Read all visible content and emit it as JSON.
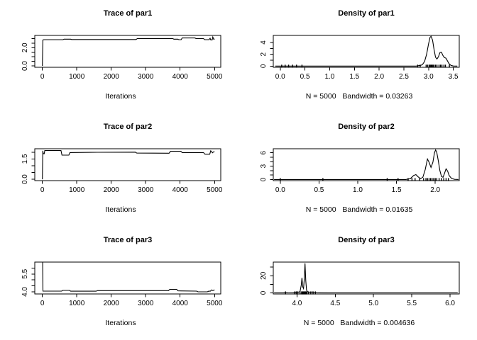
{
  "figure": {
    "background": "#ffffff",
    "foreground": "#000000",
    "layout": "3 rows x 2 cols"
  },
  "chart_data": [
    {
      "id": "trace-par1",
      "type": "line",
      "title": "Trace of par1",
      "xlabel": "Iterations",
      "xlim": [
        -220,
        5180
      ],
      "ylim": [
        -0.15,
        3.35
      ],
      "xticks": {
        "values": [
          0,
          1000,
          2000,
          3000,
          4000,
          5000
        ],
        "labels": [
          "0",
          "1000",
          "2000",
          "3000",
          "4000",
          "5000"
        ]
      },
      "yticks": {
        "values": [
          0,
          0.5,
          1,
          1.5,
          2,
          2.5,
          3
        ],
        "labels": [
          "0.0",
          "",
          "",
          "",
          "2.0",
          "",
          ""
        ]
      },
      "series": [
        [
          0,
          0
        ],
        [
          15,
          2.85
        ],
        [
          40,
          2.88
        ],
        [
          600,
          2.88
        ],
        [
          630,
          2.94
        ],
        [
          820,
          2.94
        ],
        [
          850,
          2.9
        ],
        [
          2720,
          2.9
        ],
        [
          2760,
          3.01
        ],
        [
          3780,
          3.01
        ],
        [
          3820,
          2.94
        ],
        [
          3930,
          2.94
        ],
        [
          3960,
          2.88
        ],
        [
          4030,
          2.88
        ],
        [
          4060,
          3.07
        ],
        [
          4430,
          3.07
        ],
        [
          4460,
          3.0
        ],
        [
          4680,
          3.0
        ],
        [
          4710,
          2.88
        ],
        [
          4840,
          2.88
        ],
        [
          4870,
          3.04
        ],
        [
          4890,
          2.86
        ],
        [
          4930,
          2.86
        ],
        [
          4950,
          3.18
        ],
        [
          4975,
          2.92
        ],
        [
          5000,
          2.96
        ]
      ],
      "rug": []
    },
    {
      "id": "density-par1",
      "type": "area",
      "title": "Density of par1",
      "xlabel": "N = 5000   Bandwidth = 0.03263",
      "n": 5000,
      "bandwidth": 0.03263,
      "xlim": [
        -0.14,
        3.62
      ],
      "ylim": [
        -0.2,
        5.2
      ],
      "xticks": {
        "values": [
          0,
          0.5,
          1,
          1.5,
          2,
          2.5,
          3,
          3.5
        ],
        "labels": [
          "0.0",
          "0.5",
          "1.0",
          "1.5",
          "2.0",
          "2.5",
          "3.0",
          "3.5"
        ]
      },
      "yticks": {
        "values": [
          0,
          1,
          2,
          3,
          4
        ],
        "labels": [
          "0",
          "",
          "2",
          "",
          "4"
        ]
      },
      "series": [
        [
          -0.1,
          0
        ],
        [
          2.75,
          0
        ],
        [
          2.8,
          0.08
        ],
        [
          2.85,
          0.15
        ],
        [
          2.88,
          0.3
        ],
        [
          2.92,
          0.8
        ],
        [
          2.96,
          2.0
        ],
        [
          3.0,
          3.8
        ],
        [
          3.03,
          4.9
        ],
        [
          3.05,
          5.05
        ],
        [
          3.08,
          4.4
        ],
        [
          3.11,
          2.8
        ],
        [
          3.14,
          1.5
        ],
        [
          3.17,
          1.2
        ],
        [
          3.2,
          1.6
        ],
        [
          3.23,
          2.3
        ],
        [
          3.26,
          2.35
        ],
        [
          3.29,
          1.8
        ],
        [
          3.32,
          1.45
        ],
        [
          3.35,
          1.35
        ],
        [
          3.38,
          0.9
        ],
        [
          3.41,
          0.45
        ],
        [
          3.45,
          0.12
        ],
        [
          3.5,
          0.02
        ],
        [
          3.58,
          0
        ]
      ],
      "rug": [
        0.03,
        0.1,
        0.17,
        0.25,
        0.33,
        0.44,
        2.78,
        2.83,
        2.95,
        2.98,
        3.01,
        3.03,
        3.05,
        3.07,
        3.09,
        3.11,
        3.14,
        3.17,
        3.21,
        3.24,
        3.27,
        3.31,
        3.34,
        3.42
      ]
    },
    {
      "id": "trace-par2",
      "type": "line",
      "title": "Trace of par2",
      "xlabel": "Iterations",
      "xlim": [
        -220,
        5180
      ],
      "ylim": [
        -0.1,
        2.25
      ],
      "xticks": {
        "values": [
          0,
          1000,
          2000,
          3000,
          4000,
          5000
        ],
        "labels": [
          "0",
          "1000",
          "2000",
          "3000",
          "4000",
          "5000"
        ]
      },
      "yticks": {
        "values": [
          0,
          0.5,
          1,
          1.5,
          2
        ],
        "labels": [
          "0.0",
          "",
          "",
          "1.5",
          ""
        ]
      },
      "series": [
        [
          0,
          0
        ],
        [
          12,
          2.1
        ],
        [
          30,
          1.88
        ],
        [
          55,
          1.88
        ],
        [
          70,
          2.12
        ],
        [
          540,
          2.12
        ],
        [
          570,
          1.78
        ],
        [
          770,
          1.78
        ],
        [
          800,
          1.97
        ],
        [
          1600,
          1.99
        ],
        [
          2700,
          2.0
        ],
        [
          2740,
          1.93
        ],
        [
          3680,
          1.92
        ],
        [
          3720,
          2.06
        ],
        [
          4020,
          2.06
        ],
        [
          4060,
          1.97
        ],
        [
          4680,
          1.97
        ],
        [
          4720,
          1.85
        ],
        [
          4860,
          1.85
        ],
        [
          4890,
          2.1
        ],
        [
          4940,
          1.95
        ],
        [
          4970,
          2.02
        ],
        [
          5000,
          2.02
        ]
      ],
      "rug": []
    },
    {
      "id": "density-par2",
      "type": "area",
      "title": "Density of par2",
      "xlabel": "N = 5000   Bandwidth = 0.01635",
      "n": 5000,
      "bandwidth": 0.01635,
      "xlim": [
        -0.09,
        2.31
      ],
      "ylim": [
        -0.25,
        6.9
      ],
      "xticks": {
        "values": [
          0,
          0.5,
          1,
          1.5,
          2
        ],
        "labels": [
          "0.0",
          "0.5",
          "1.0",
          "1.5",
          "2.0"
        ]
      },
      "yticks": {
        "values": [
          0,
          1,
          2,
          3,
          4,
          5,
          6
        ],
        "labels": [
          "0",
          "",
          "",
          "3",
          "",
          "",
          "6"
        ]
      },
      "series": [
        [
          -0.08,
          0
        ],
        [
          1.62,
          0
        ],
        [
          1.68,
          0.2
        ],
        [
          1.72,
          0.9
        ],
        [
          1.75,
          1.1
        ],
        [
          1.78,
          0.6
        ],
        [
          1.81,
          0.2
        ],
        [
          1.84,
          0.5
        ],
        [
          1.87,
          2.2
        ],
        [
          1.9,
          4.6
        ],
        [
          1.92,
          3.9
        ],
        [
          1.945,
          2.7
        ],
        [
          1.97,
          3.9
        ],
        [
          1.99,
          6.0
        ],
        [
          2.005,
          6.65
        ],
        [
          2.02,
          6.1
        ],
        [
          2.04,
          4.2
        ],
        [
          2.06,
          2.0
        ],
        [
          2.08,
          0.7
        ],
        [
          2.1,
          0.5
        ],
        [
          2.12,
          1.4
        ],
        [
          2.14,
          2.4
        ],
        [
          2.16,
          1.9
        ],
        [
          2.18,
          0.9
        ],
        [
          2.21,
          0.25
        ],
        [
          2.25,
          0.03
        ],
        [
          2.3,
          0
        ]
      ],
      "rug": [
        0.0,
        0.55,
        1.38,
        1.52,
        1.65,
        1.7,
        1.74,
        1.8,
        1.85,
        1.88,
        1.9,
        1.92,
        1.94,
        1.96,
        1.98,
        2.0,
        2.02,
        2.05,
        2.08,
        2.11,
        2.14,
        2.17
      ]
    },
    {
      "id": "trace-par3",
      "type": "line",
      "title": "Trace of par3",
      "xlabel": "Iterations",
      "xlim": [
        -220,
        5180
      ],
      "ylim": [
        3.82,
        6.5
      ],
      "xticks": {
        "values": [
          0,
          1000,
          2000,
          3000,
          4000,
          5000
        ],
        "labels": [
          "0",
          "1000",
          "2000",
          "3000",
          "4000",
          "5000"
        ]
      },
      "yticks": {
        "values": [
          4,
          4.5,
          5,
          5.5,
          6
        ],
        "labels": [
          "4.0",
          "",
          "",
          "5.5",
          ""
        ]
      },
      "series": [
        [
          0,
          6.45
        ],
        [
          8,
          6.45
        ],
        [
          18,
          4.06
        ],
        [
          560,
          4.06
        ],
        [
          590,
          4.12
        ],
        [
          790,
          4.12
        ],
        [
          820,
          4.05
        ],
        [
          1560,
          4.05
        ],
        [
          1600,
          4.1
        ],
        [
          3660,
          4.1
        ],
        [
          3700,
          4.21
        ],
        [
          3900,
          4.21
        ],
        [
          3940,
          4.08
        ],
        [
          4480,
          4.06
        ],
        [
          4520,
          4.0
        ],
        [
          4790,
          4.0
        ],
        [
          4830,
          4.05
        ],
        [
          4880,
          4.05
        ],
        [
          4910,
          4.16
        ],
        [
          4950,
          4.1
        ],
        [
          5000,
          4.16
        ]
      ],
      "rug": []
    },
    {
      "id": "density-par3",
      "type": "area",
      "title": "Density of par3",
      "xlabel": "N = 5000   Bandwidth = 0.004636",
      "n": 5000,
      "bandwidth": 0.004636,
      "xlim": [
        3.69,
        6.12
      ],
      "ylim": [
        -1.3,
        36
      ],
      "xticks": {
        "values": [
          4,
          4.5,
          5,
          5.5,
          6
        ],
        "labels": [
          "4.0",
          "4.5",
          "5.0",
          "5.5",
          "6.0"
        ]
      },
      "yticks": {
        "values": [
          0,
          10,
          20,
          30
        ],
        "labels": [
          "0",
          "",
          "20",
          ""
        ]
      },
      "series": [
        [
          3.7,
          0
        ],
        [
          3.82,
          0.05
        ],
        [
          3.85,
          0.4
        ],
        [
          3.88,
          0.2
        ],
        [
          3.95,
          0.15
        ],
        [
          3.98,
          0.7
        ],
        [
          4.0,
          0.9
        ],
        [
          4.02,
          0.8
        ],
        [
          4.04,
          1.5
        ],
        [
          4.055,
          9
        ],
        [
          4.065,
          17.5
        ],
        [
          4.075,
          7
        ],
        [
          4.085,
          5
        ],
        [
          4.095,
          16
        ],
        [
          4.105,
          34.5
        ],
        [
          4.115,
          14
        ],
        [
          4.125,
          3
        ],
        [
          4.14,
          1.2
        ],
        [
          4.17,
          0.7
        ],
        [
          4.2,
          0.9
        ],
        [
          4.23,
          0.8
        ],
        [
          4.26,
          0.3
        ],
        [
          4.32,
          0.1
        ],
        [
          4.4,
          0.02
        ],
        [
          4.6,
          0
        ],
        [
          6.1,
          0
        ]
      ],
      "rug": [
        3.85,
        3.97,
        3.99,
        4.01,
        4.04,
        4.06,
        4.07,
        4.08,
        4.09,
        4.1,
        4.11,
        4.12,
        4.13,
        4.15,
        4.18,
        4.21,
        4.24
      ]
    }
  ]
}
